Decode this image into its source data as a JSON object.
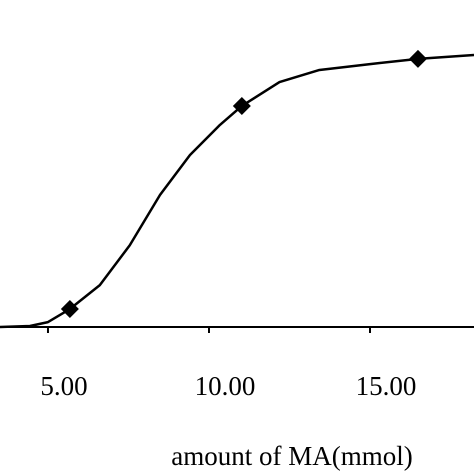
{
  "chart_data": {
    "type": "line",
    "x_label": "amount of MA(mmol)",
    "xlim": [
      3.51,
      18.23
    ],
    "xticks": [
      {
        "value": 5,
        "label": "5.00"
      },
      {
        "value": 10,
        "label": "10.00"
      },
      {
        "value": 15,
        "label": "15.00"
      }
    ],
    "ylim": [
      0,
      100
    ],
    "series": [
      {
        "color": "#000000",
        "x": [
          3.51,
          4.44,
          5.0,
          5.68,
          6.61,
          7.54,
          8.48,
          9.41,
          10.34,
          11.02,
          12.19,
          13.43,
          15.0,
          16.49,
          18.23
        ],
        "values": [
          0,
          0.3,
          1.5,
          5.5,
          12.8,
          25,
          40.4,
          52.6,
          61.8,
          67.6,
          74.9,
          78.6,
          80.4,
          82.0,
          83.2
        ]
      }
    ],
    "points": {
      "marker": "diamond",
      "color": "#000000",
      "x": [
        5.68,
        11.02,
        16.49
      ],
      "values": [
        5.5,
        67.6,
        82.0
      ]
    }
  }
}
